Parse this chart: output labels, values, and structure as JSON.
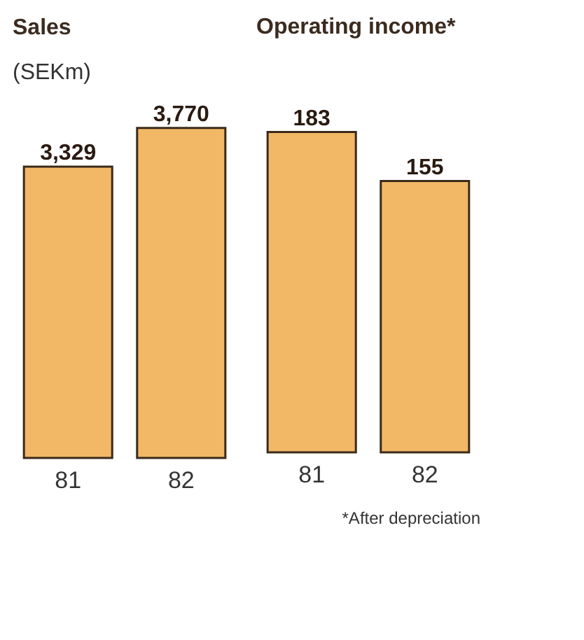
{
  "chart_data": [
    {
      "type": "bar",
      "title": "Sales",
      "subtitle": "(SEKm)",
      "categories": [
        "81",
        "82"
      ],
      "values": [
        3329,
        3770
      ],
      "colors": [
        "#f2b866",
        "#f2b866"
      ],
      "value_labels": [
        "3,329",
        "3,770"
      ]
    },
    {
      "type": "bar",
      "title": "Operating income*",
      "categories": [
        "81",
        "82"
      ],
      "values": [
        183,
        155
      ],
      "colors": [
        "#f2b866",
        "#f2b866"
      ],
      "value_labels": [
        "183",
        "155"
      ],
      "annotations": [
        "*After depreciation"
      ]
    }
  ]
}
